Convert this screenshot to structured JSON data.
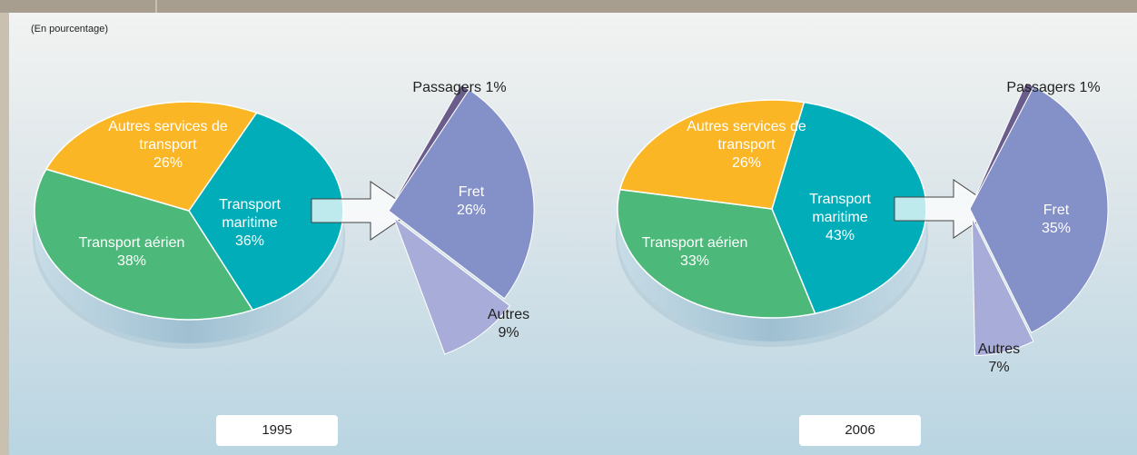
{
  "note": "(En pourcentage)",
  "chart_data": [
    {
      "type": "pie",
      "title": "1995",
      "categories": [
        "Transport maritime",
        "Transport aérien",
        "Autres services de transport"
      ],
      "values": [
        36,
        38,
        26
      ],
      "value_labels": [
        "36%",
        "38%",
        "26%"
      ],
      "colors": [
        "#00adb9",
        "#4cb97a",
        "#fbb626"
      ],
      "breakdown": {
        "categories": [
          "Passagers",
          "Fret",
          "Autres"
        ],
        "values": [
          1,
          26,
          9
        ],
        "value_labels": [
          "1%",
          "26%",
          "9%"
        ],
        "colors": [
          "#6a5d8c",
          "#8490c8",
          "#a8acd8"
        ]
      }
    },
    {
      "type": "pie",
      "title": "2006",
      "categories": [
        "Transport maritime",
        "Transport aérien",
        "Autres services de transport"
      ],
      "values": [
        43,
        33,
        26
      ],
      "value_labels": [
        "43%",
        "33%",
        "26%"
      ],
      "colors": [
        "#00adb9",
        "#4cb97a",
        "#fbb626"
      ],
      "breakdown": {
        "categories": [
          "Passagers",
          "Fret",
          "Autres"
        ],
        "values": [
          1,
          35,
          7
        ],
        "value_labels": [
          "1%",
          "35%",
          "7%"
        ],
        "colors": [
          "#6a5d8c",
          "#8490c8",
          "#a8acd8"
        ]
      }
    }
  ]
}
